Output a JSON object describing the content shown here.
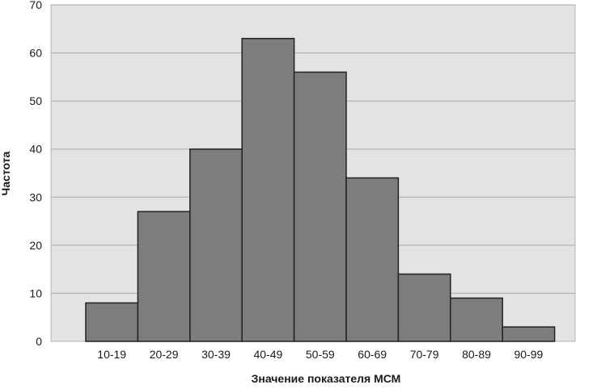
{
  "chart_data": {
    "type": "bar",
    "categories": [
      "10-19",
      "20-29",
      "30-39",
      "40-49",
      "50-59",
      "60-69",
      "70-79",
      "80-89",
      "90-99"
    ],
    "values": [
      8,
      27,
      40,
      63,
      56,
      34,
      14,
      9,
      3
    ],
    "xlabel": "Значение показателя МСМ",
    "ylabel": "Частота",
    "ylim": [
      0,
      70
    ],
    "yticks": [
      0,
      10,
      20,
      30,
      40,
      50,
      60,
      70
    ],
    "grid": "horizontal",
    "legend": "none",
    "colors": {
      "plot_background": "#e3e3e3",
      "bar_fill": "#7d7d7d",
      "bar_edge": "#222222",
      "grid": "#a9a9a9"
    }
  }
}
